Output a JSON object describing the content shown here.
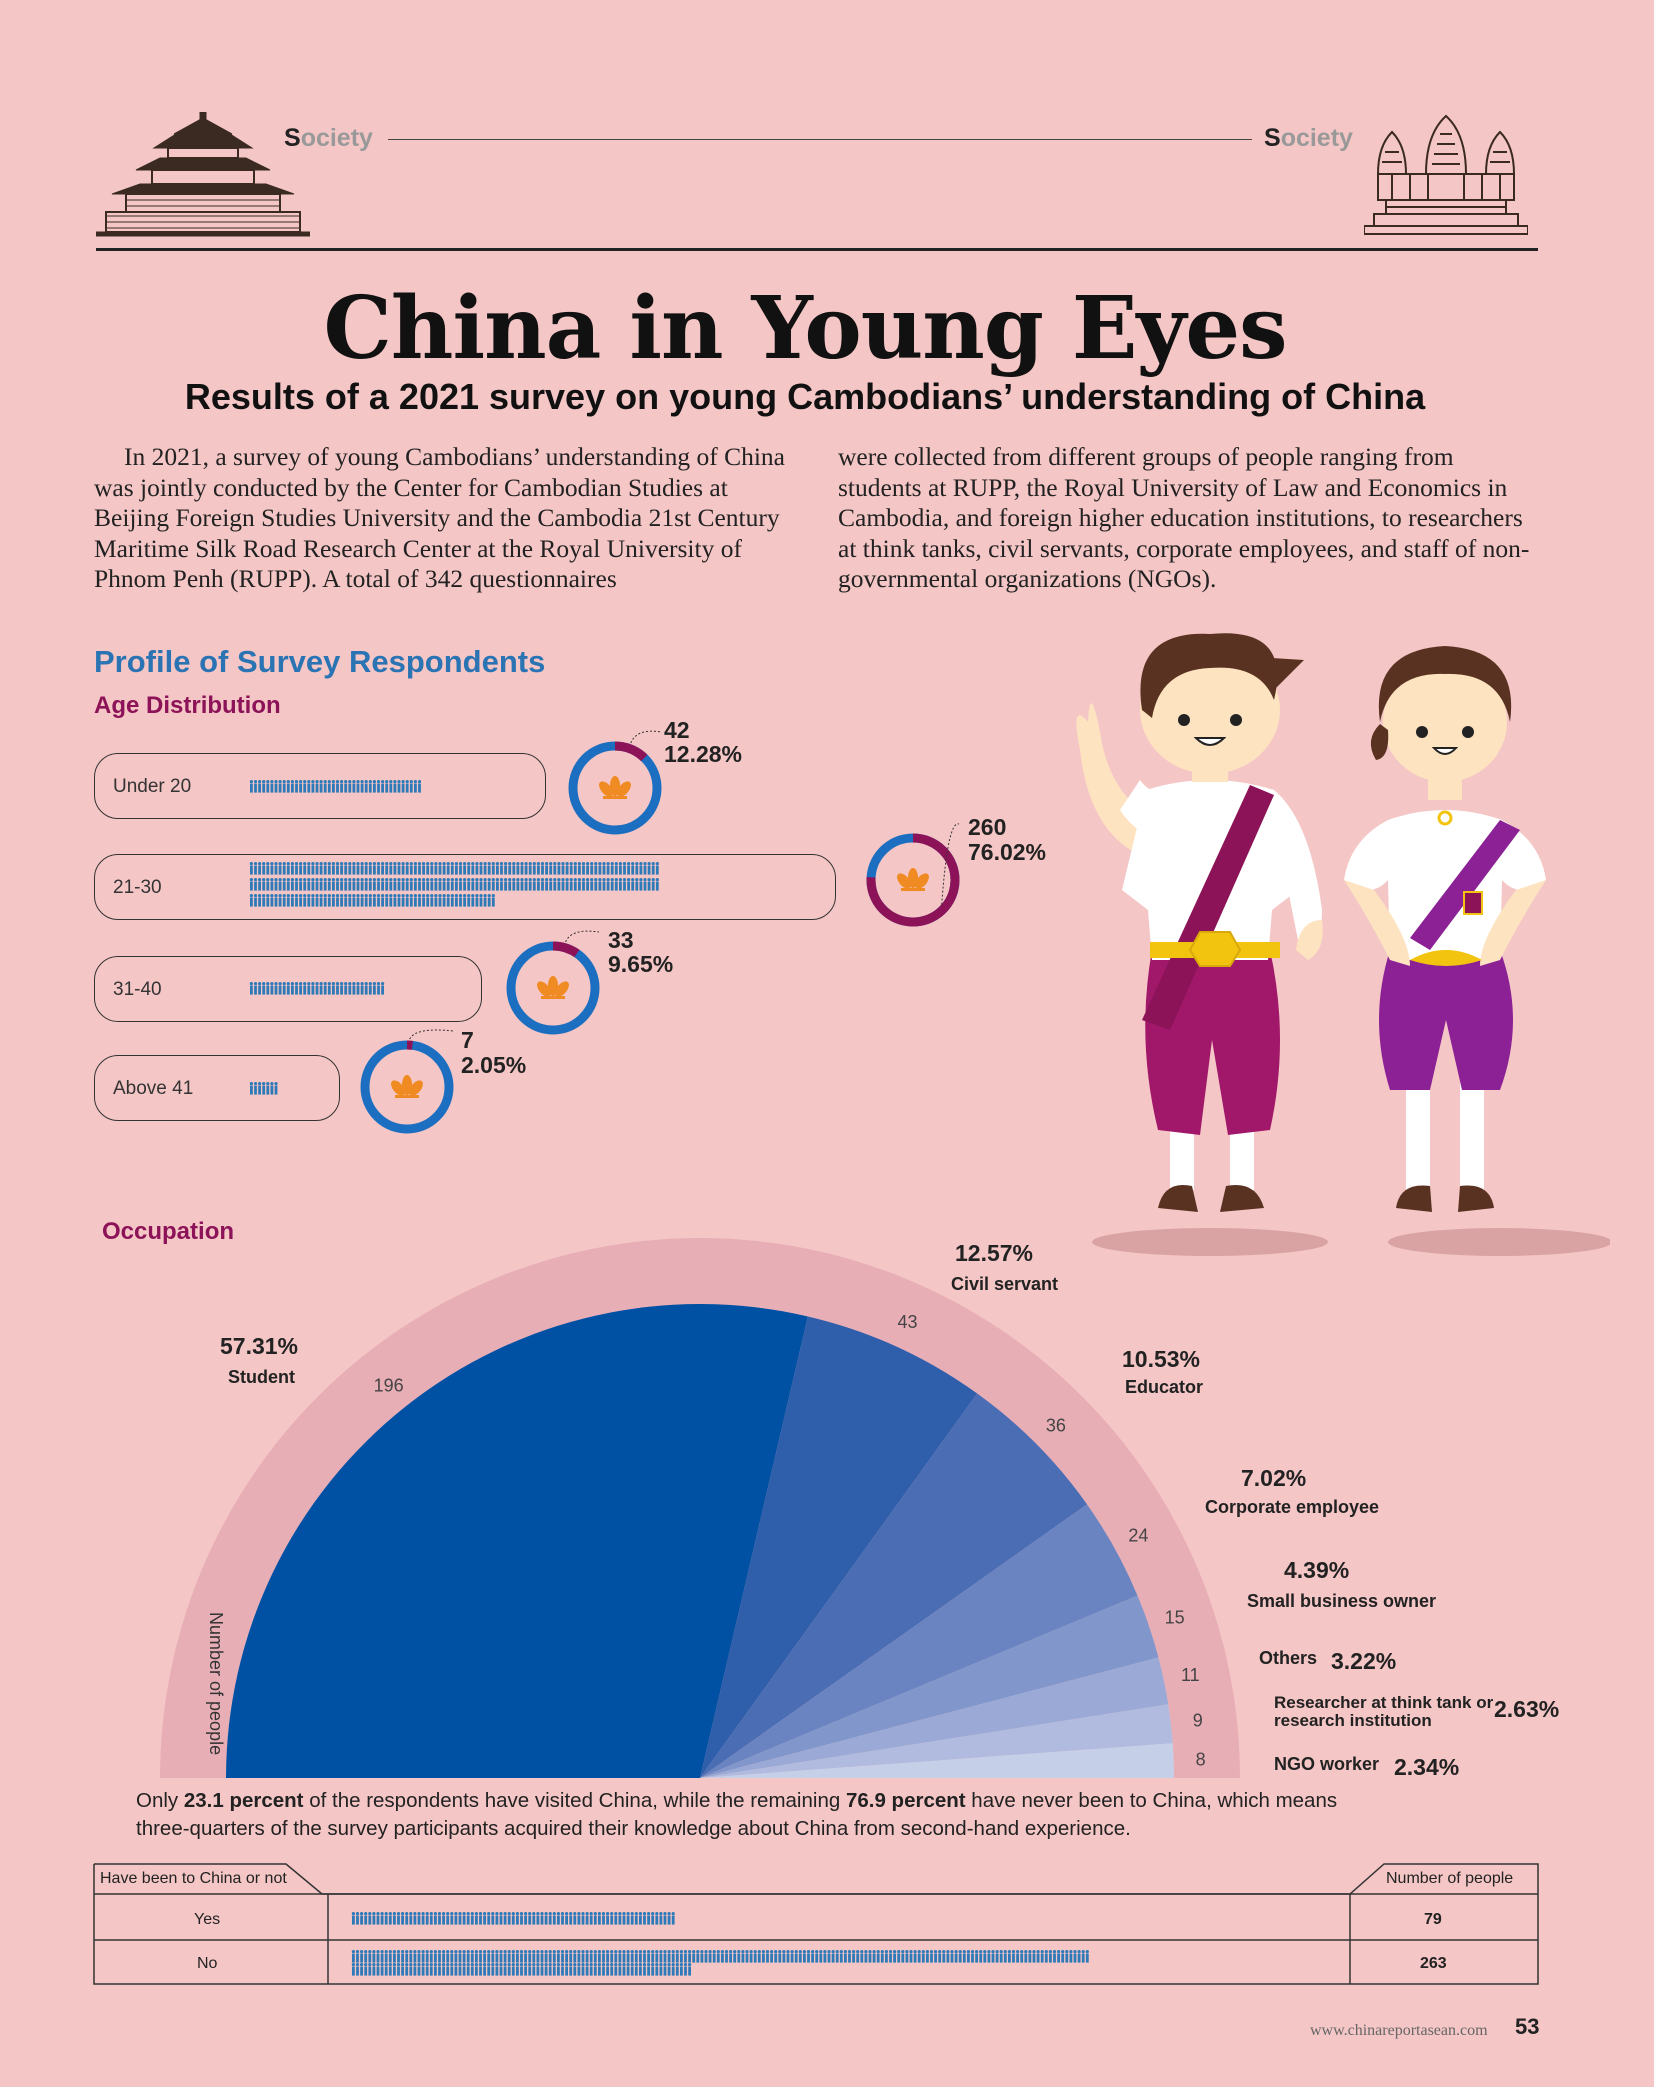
{
  "header": {
    "section_left": "Society",
    "section_right": "Society"
  },
  "title": "China in Young Eyes",
  "subtitle": "Results of a 2021 survey on young Cambodians’ understanding of China",
  "intro": {
    "left": "In 2021, a survey of young Cambodians’ understanding of China was jointly conducted by the Center for Cambodian Studies at Beijing Foreign Studies University and the Cambodia 21st Century Maritime Silk Road Research Center at the Royal University of Phnom Penh (RUPP). A total of 342 questionnaires",
    "right": "were collected from different groups of people ranging from students at RUPP, the Royal University of Law and Economics in Cambodia, and foreign higher education institutions, to researchers at think tanks, civil servants, corporate employees, and staff of non-governmental organizations (NGOs)."
  },
  "profile_heading": "Profile of Survey Respondents",
  "age": {
    "heading": "Age Distribution",
    "groups": [
      {
        "label": "Under 20",
        "count": "42",
        "percent": "12.28%",
        "value": 42,
        "share": 0.1228
      },
      {
        "label": "21-30",
        "count": "260",
        "percent": "76.02%",
        "value": 260,
        "share": 0.7602
      },
      {
        "label": "31-40",
        "count": "33",
        "percent": "9.65%",
        "value": 33,
        "share": 0.0965
      },
      {
        "label": "Above 41",
        "count": "7",
        "percent": "2.05%",
        "value": 7,
        "share": 0.0205
      }
    ]
  },
  "occupation": {
    "heading": "Occupation",
    "axis_label": "Number of people",
    "items": [
      {
        "label": "Student",
        "percent": "57.31%",
        "count": "196",
        "value": 196
      },
      {
        "label": "Civil servant",
        "percent": "12.57%",
        "count": "43",
        "value": 43
      },
      {
        "label": "Educator",
        "percent": "10.53%",
        "count": "36",
        "value": 36
      },
      {
        "label": "Corporate employee",
        "percent": "7.02%",
        "count": "24",
        "value": 24
      },
      {
        "label": "Small business owner",
        "percent": "4.39%",
        "count": "15",
        "value": 15
      },
      {
        "label": "Others",
        "percent": "3.22%",
        "count": "11",
        "value": 11
      },
      {
        "label": "Researcher at think tank or research institution",
        "percent": "2.63%",
        "count": "9",
        "value": 9
      },
      {
        "label": "NGO worker",
        "percent": "2.34%",
        "count": "8",
        "value": 8
      }
    ],
    "colors": [
      "#0050a3",
      "#2f5eab",
      "#4b6db4",
      "#6a84c2",
      "#8196cb",
      "#9aa9d5",
      "#b0bbdf",
      "#c6cfe8"
    ]
  },
  "visit": {
    "t1": "Only ",
    "b1": "23.1 percent",
    "t2": " of the respondents have visited China, while the remaining ",
    "b2": "76.9 percent",
    "t3": " have never been to China, which means three-quarters of the survey participants acquired their knowledge about China from second-hand experience."
  },
  "table": {
    "col1": "Have been to China or not",
    "col2": "Number of people",
    "rows": [
      {
        "label": "Yes",
        "count": "79",
        "value": 79
      },
      {
        "label": "No",
        "count": "263",
        "value": 263
      }
    ]
  },
  "footer": {
    "url": "www.chinareportasean.com",
    "page": "53"
  },
  "chart_data": [
    {
      "type": "pie",
      "title": "Age Distribution",
      "categories": [
        "Under 20",
        "21-30",
        "31-40",
        "Above 41"
      ],
      "values": [
        42,
        260,
        33,
        7
      ],
      "percent": [
        12.28,
        76.02,
        9.65,
        2.05
      ]
    },
    {
      "type": "pie",
      "title": "Occupation",
      "categories": [
        "Student",
        "Civil servant",
        "Educator",
        "Corporate employee",
        "Small business owner",
        "Others",
        "Researcher at think tank or research institution",
        "NGO worker"
      ],
      "values": [
        196,
        43,
        36,
        24,
        15,
        11,
        9,
        8
      ],
      "percent": [
        57.31,
        12.57,
        10.53,
        7.02,
        4.39,
        3.22,
        2.63,
        2.34
      ]
    },
    {
      "type": "bar",
      "title": "Have been to China or not",
      "categories": [
        "Yes",
        "No"
      ],
      "values": [
        79,
        263
      ]
    }
  ]
}
